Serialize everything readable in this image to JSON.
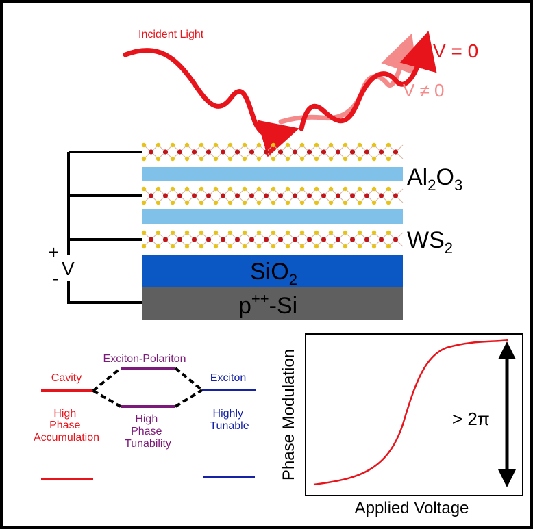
{
  "top": {
    "incident_light": "Incident Light",
    "v_zero": "V = 0",
    "v_nonzero": "V ≠ 0",
    "labels": {
      "al2o3_main": "Al",
      "al2o3_sub1": "2",
      "al2o3_mid": "O",
      "al2o3_sub2": "3",
      "ws2_main": "WS",
      "ws2_sub": "2",
      "sio2_main": "SiO",
      "sio2_sub": "2",
      "si_base": "p",
      "si_sup": "++",
      "si_rest": "-Si"
    },
    "bias": {
      "plus": "+",
      "v": "V",
      "minus": "-"
    }
  },
  "energy_diagram": {
    "cavity": "Cavity",
    "cavity_desc": [
      "High",
      "Phase",
      "Accumulation"
    ],
    "polariton": "Exciton-Polariton",
    "polariton_desc": [
      "High",
      "Phase",
      "Tunability"
    ],
    "exciton": "Exciton",
    "exciton_desc": [
      "Highly",
      "Tunable"
    ]
  },
  "plot": {
    "xlabel": "Applied Voltage",
    "ylabel": "Phase Modulation",
    "annotation": "> 2π"
  },
  "colors": {
    "red": "#e8141b",
    "light_red": "#f58a8a",
    "purple": "#7b1a78",
    "blue": "#1622a6",
    "al2o3": "#7fc1e8",
    "sio2": "#0b57c4",
    "si": "#5f5f5f",
    "sulfur": "#e6c21a",
    "tungsten": "#c0151a"
  }
}
